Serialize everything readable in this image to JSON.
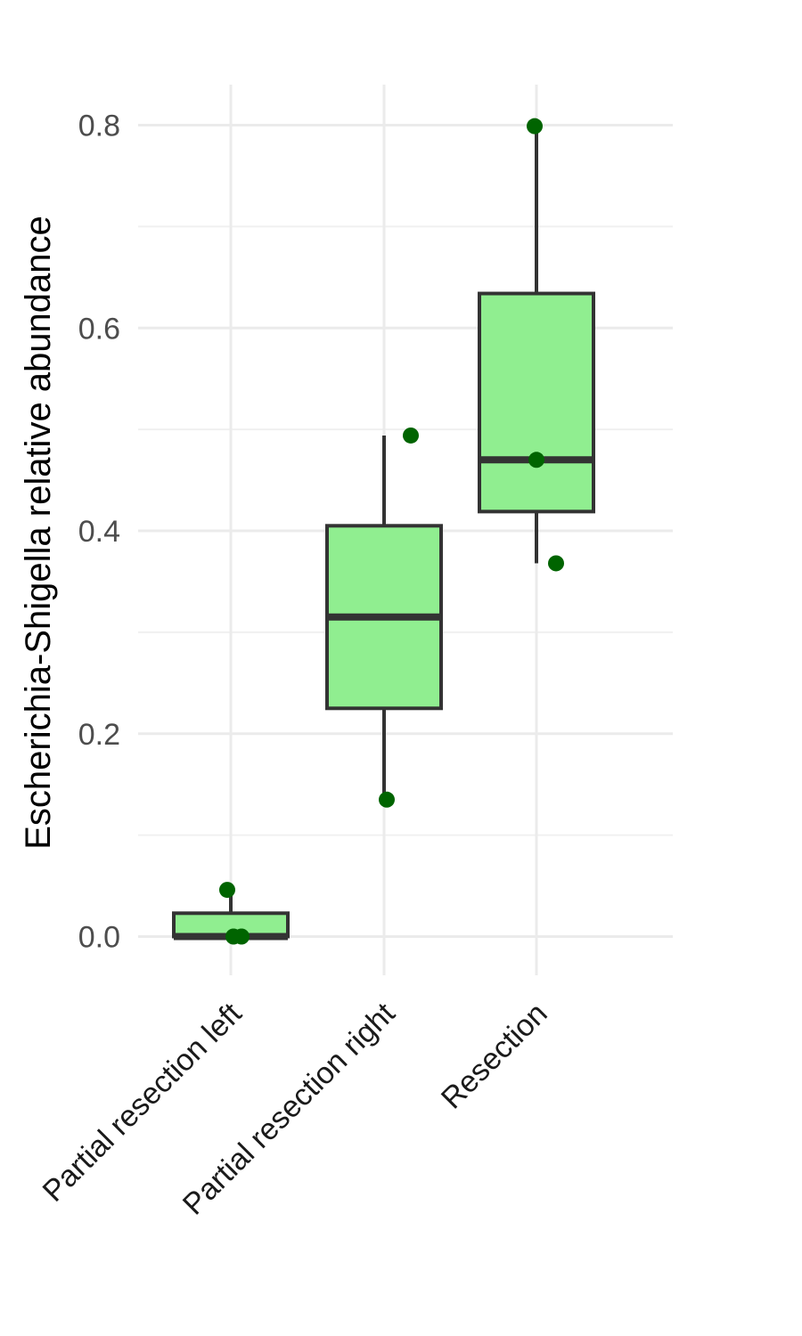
{
  "chart_data": {
    "type": "box",
    "title": "",
    "xlabel": "",
    "ylabel": "Escherichia-Shigella relative abundance",
    "ylim": [
      -0.04,
      0.84
    ],
    "y_ticks": [
      0.0,
      0.2,
      0.4,
      0.6,
      0.8
    ],
    "y_tick_labels": [
      "0.0",
      "0.2",
      "0.4",
      "0.6",
      "0.8"
    ],
    "y_minor_ticks": [
      0.1,
      0.3,
      0.5,
      0.7
    ],
    "grid": true,
    "x_tick_rotation": -45,
    "categories": [
      "Partial resection left",
      "Partial resection right",
      "Resection"
    ],
    "boxes": [
      {
        "category": "Partial resection left",
        "whisker_low": 0.0,
        "q1": 0.0,
        "median": 0.0,
        "q3": 0.023,
        "whisker_high": 0.046
      },
      {
        "category": "Partial resection right",
        "whisker_low": 0.135,
        "q1": 0.225,
        "median": 0.315,
        "q3": 0.405,
        "whisker_high": 0.494
      },
      {
        "category": "Resection",
        "whisker_low": 0.368,
        "q1": 0.419,
        "median": 0.47,
        "q3": 0.634,
        "whisker_high": 0.799
      }
    ],
    "points": [
      {
        "category": "Partial resection left",
        "y": 0.046
      },
      {
        "category": "Partial resection left",
        "y": 0.0
      },
      {
        "category": "Partial resection left",
        "y": 0.0
      },
      {
        "category": "Partial resection right",
        "y": 0.494
      },
      {
        "category": "Partial resection right",
        "y": 0.135
      },
      {
        "category": "Resection",
        "y": 0.799
      },
      {
        "category": "Resection",
        "y": 0.47
      },
      {
        "category": "Resection",
        "y": 0.368
      }
    ],
    "colors": {
      "box_fill": "#90ee90",
      "box_outline": "#333333",
      "point": "#006400",
      "grid_major": "#ebebeb",
      "grid_minor": "#f0f0f0"
    }
  }
}
